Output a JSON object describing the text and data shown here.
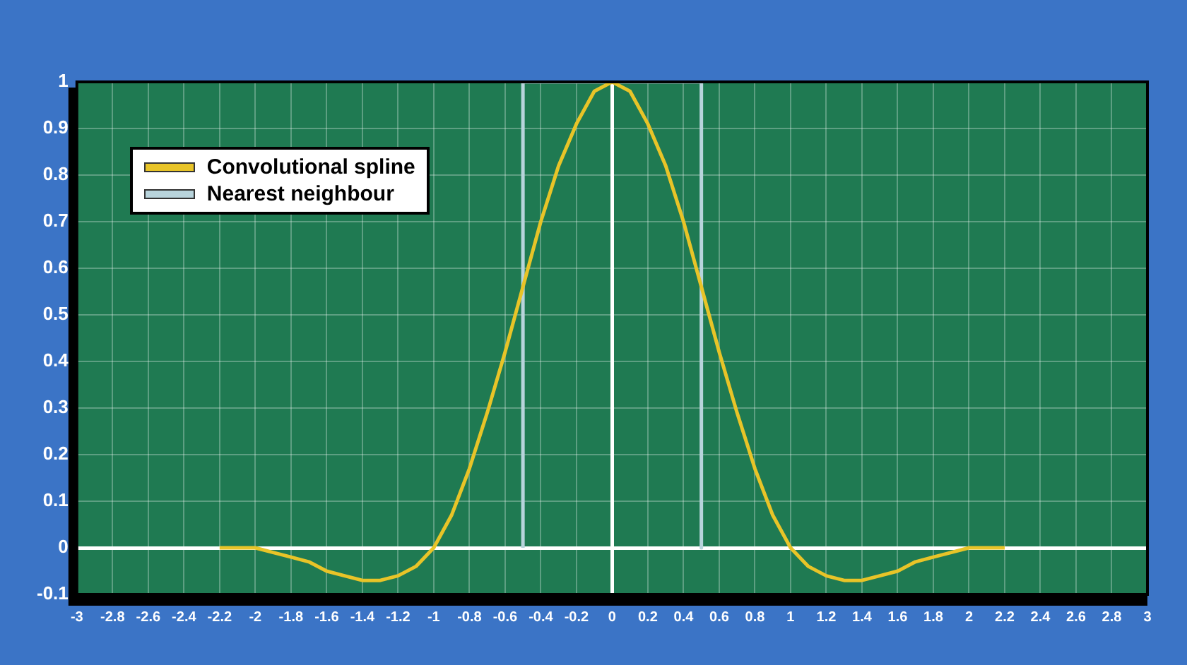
{
  "chart_data": {
    "type": "line",
    "legend": "top left",
    "grid": true,
    "marker": "none",
    "line_style": "solid",
    "xlim": [
      -3,
      3
    ],
    "xticks": [
      -3,
      -2.8,
      -2.6,
      -2.4,
      -2.2,
      -2,
      -1.8,
      -1.6,
      -1.4,
      -1.2,
      -1,
      -0.8,
      -0.6,
      -0.4,
      -0.2,
      0,
      0.2,
      0.4,
      0.6,
      0.8,
      1,
      1.2,
      1.4,
      1.6,
      1.8,
      2,
      2.2,
      2.4,
      2.6,
      2.8,
      3
    ],
    "ylim": [
      -0.1,
      1
    ],
    "yticks": [
      -0.1,
      0,
      0.1,
      0.2,
      0.3,
      0.4,
      0.5,
      0.6,
      0.7,
      0.8,
      0.9,
      1
    ],
    "series": [
      {
        "name": "Convolutional spline",
        "color": "#e8c428",
        "x": [
          -2.2,
          -2.1,
          -2,
          -1.9,
          -1.8,
          -1.7,
          -1.6,
          -1.5,
          -1.4,
          -1.3,
          -1.2,
          -1.1,
          -1,
          -0.9,
          -0.8,
          -0.7,
          -0.6,
          -0.5,
          -0.4,
          -0.3,
          -0.2,
          -0.1,
          0,
          0.1,
          0.2,
          0.3,
          0.4,
          0.5,
          0.6,
          0.7,
          0.8,
          0.9,
          1,
          1.1,
          1.2,
          1.3,
          1.4,
          1.5,
          1.6,
          1.7,
          1.8,
          1.9,
          2,
          2.1,
          2.2
        ],
        "values": [
          0,
          0,
          0,
          -0.01,
          -0.02,
          -0.03,
          -0.05,
          -0.06,
          -0.07,
          -0.07,
          -0.06,
          -0.04,
          0,
          0.07,
          0.17,
          0.29,
          0.42,
          0.56,
          0.7,
          0.82,
          0.91,
          0.98,
          1,
          0.98,
          0.91,
          0.82,
          0.7,
          0.56,
          0.42,
          0.29,
          0.17,
          0.07,
          0,
          -0.04,
          -0.06,
          -0.07,
          -0.07,
          -0.06,
          -0.05,
          -0.03,
          -0.02,
          -0.01,
          0,
          0,
          0
        ]
      },
      {
        "name": "Nearest neighbour",
        "color": "#b8d4dc",
        "x": [
          -0.5,
          -0.5,
          0.5,
          0.5
        ],
        "values": [
          0,
          1,
          1,
          0
        ]
      }
    ]
  }
}
